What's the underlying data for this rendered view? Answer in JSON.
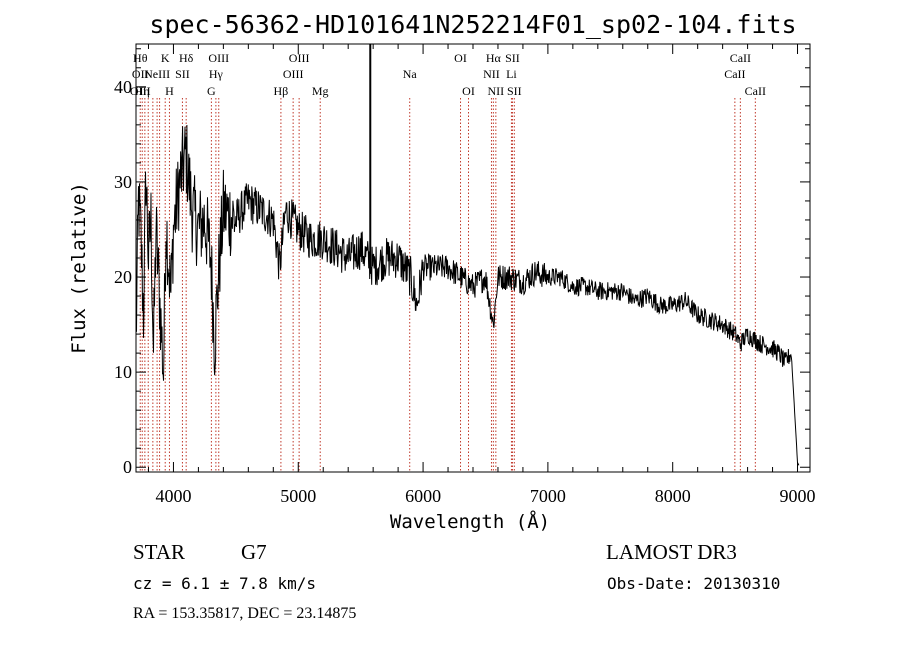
{
  "chart_data": {
    "type": "line",
    "title": "spec-56362-HD101641N252214F01_sp02-104.fits",
    "xlabel": "Wavelength (Å)",
    "ylabel": "Flux (relative)",
    "xlim": [
      3700,
      9100
    ],
    "ylim": [
      -0.5,
      44.5
    ],
    "xticks": [
      4000,
      5000,
      6000,
      7000,
      8000,
      9000
    ],
    "yticks": [
      0,
      10,
      20,
      30,
      40
    ],
    "grid": false,
    "series": [
      {
        "name": "spectrum",
        "x": [
          3700,
          3720,
          3740,
          3760,
          3780,
          3800,
          3820,
          3840,
          3860,
          3880,
          3900,
          3920,
          3940,
          3960,
          3980,
          4000,
          4050,
          4100,
          4150,
          4200,
          4250,
          4300,
          4330,
          4360,
          4400,
          4500,
          4600,
          4700,
          4800,
          4850,
          4900,
          5000,
          5100,
          5200,
          5300,
          5400,
          5500,
          5600,
          5700,
          5800,
          5900,
          5950,
          6000,
          6100,
          6200,
          6300,
          6400,
          6500,
          6563,
          6600,
          6700,
          6800,
          6900,
          7000,
          7100,
          7200,
          7300,
          7400,
          7500,
          7600,
          7700,
          7800,
          7900,
          8000,
          8100,
          8200,
          8300,
          8400,
          8500,
          8542,
          8600,
          8700,
          8800,
          8850,
          8900,
          8950,
          9000,
          9010
        ],
        "y": [
          13,
          28,
          24,
          16,
          31,
          22,
          26,
          12,
          25,
          20,
          15,
          10,
          26,
          22,
          18,
          25,
          30,
          33,
          27,
          25,
          26,
          22,
          13,
          20,
          27,
          26,
          28,
          27,
          26,
          21,
          27,
          25,
          24,
          24,
          23,
          22,
          23,
          21,
          22,
          22,
          20,
          17,
          21,
          21,
          21,
          20,
          19,
          20,
          15,
          20,
          20,
          19.5,
          20.5,
          20,
          20,
          19,
          19,
          18.5,
          18.5,
          18.5,
          17.5,
          18,
          17,
          17,
          17.5,
          16,
          15.5,
          15,
          14,
          13,
          14,
          13,
          12.5,
          12,
          11,
          12,
          0.5,
          0.2
        ]
      }
    ],
    "lines": [
      {
        "wl": 3734,
        "labels": [
          "Hθ",
          "OII",
          "OIII"
        ]
      },
      {
        "wl": 3750,
        "labels": [
          "",
          "",
          "Hη"
        ]
      },
      {
        "wl": 3771,
        "labels": [
          "",
          "",
          ""
        ]
      },
      {
        "wl": 3798,
        "labels": [
          "",
          "",
          ""
        ]
      },
      {
        "wl": 3835,
        "labels": [
          "",
          "",
          ""
        ]
      },
      {
        "wl": 3869,
        "labels": [
          "",
          "NeIII",
          ""
        ]
      },
      {
        "wl": 3889,
        "labels": [
          "",
          "",
          ""
        ]
      },
      {
        "wl": 3934,
        "labels": [
          "K",
          "",
          ""
        ]
      },
      {
        "wl": 3968,
        "labels": [
          "",
          "",
          "H"
        ]
      },
      {
        "wl": 4072,
        "labels": [
          "",
          "SII",
          ""
        ]
      },
      {
        "wl": 4102,
        "labels": [
          "Hδ",
          "",
          ""
        ]
      },
      {
        "wl": 4304,
        "labels": [
          "",
          "",
          "G"
        ]
      },
      {
        "wl": 4340,
        "labels": [
          "",
          "Hγ",
          ""
        ]
      },
      {
        "wl": 4363,
        "labels": [
          "OIII",
          "",
          ""
        ]
      },
      {
        "wl": 4861,
        "labels": [
          "",
          "",
          "Hβ"
        ]
      },
      {
        "wl": 4959,
        "labels": [
          "",
          "OIII",
          ""
        ]
      },
      {
        "wl": 5007,
        "labels": [
          "OIII",
          "",
          ""
        ]
      },
      {
        "wl": 5176,
        "labels": [
          "",
          "",
          "Mg"
        ]
      },
      {
        "wl": 5893,
        "labels": [
          "",
          "Na",
          ""
        ]
      },
      {
        "wl": 6300,
        "labels": [
          "OI",
          "",
          ""
        ]
      },
      {
        "wl": 6364,
        "labels": [
          "",
          "",
          "OI"
        ]
      },
      {
        "wl": 6548,
        "labels": [
          "",
          "NII",
          ""
        ]
      },
      {
        "wl": 6563,
        "labels": [
          "Hα",
          "",
          ""
        ]
      },
      {
        "wl": 6583,
        "labels": [
          "",
          "",
          "NII"
        ]
      },
      {
        "wl": 6708,
        "labels": [
          "",
          "Li",
          ""
        ]
      },
      {
        "wl": 6716,
        "labels": [
          "SII",
          "",
          ""
        ]
      },
      {
        "wl": 6731,
        "labels": [
          "",
          "",
          "SII"
        ]
      },
      {
        "wl": 8498,
        "labels": [
          "",
          "CaII",
          ""
        ]
      },
      {
        "wl": 8542,
        "labels": [
          "CaII",
          "",
          ""
        ]
      },
      {
        "wl": 8662,
        "labels": [
          "",
          "",
          "CaII"
        ]
      }
    ],
    "reference_line_wl": 5577
  },
  "info": {
    "object_class": "STAR",
    "subclass": "G7",
    "survey": "LAMOST DR3",
    "cz": "cz = 6.1 ± 7.8 km/s",
    "obs_date": "Obs-Date: 20130310",
    "coords": "RA = 153.35817, DEC =  23.14875"
  }
}
